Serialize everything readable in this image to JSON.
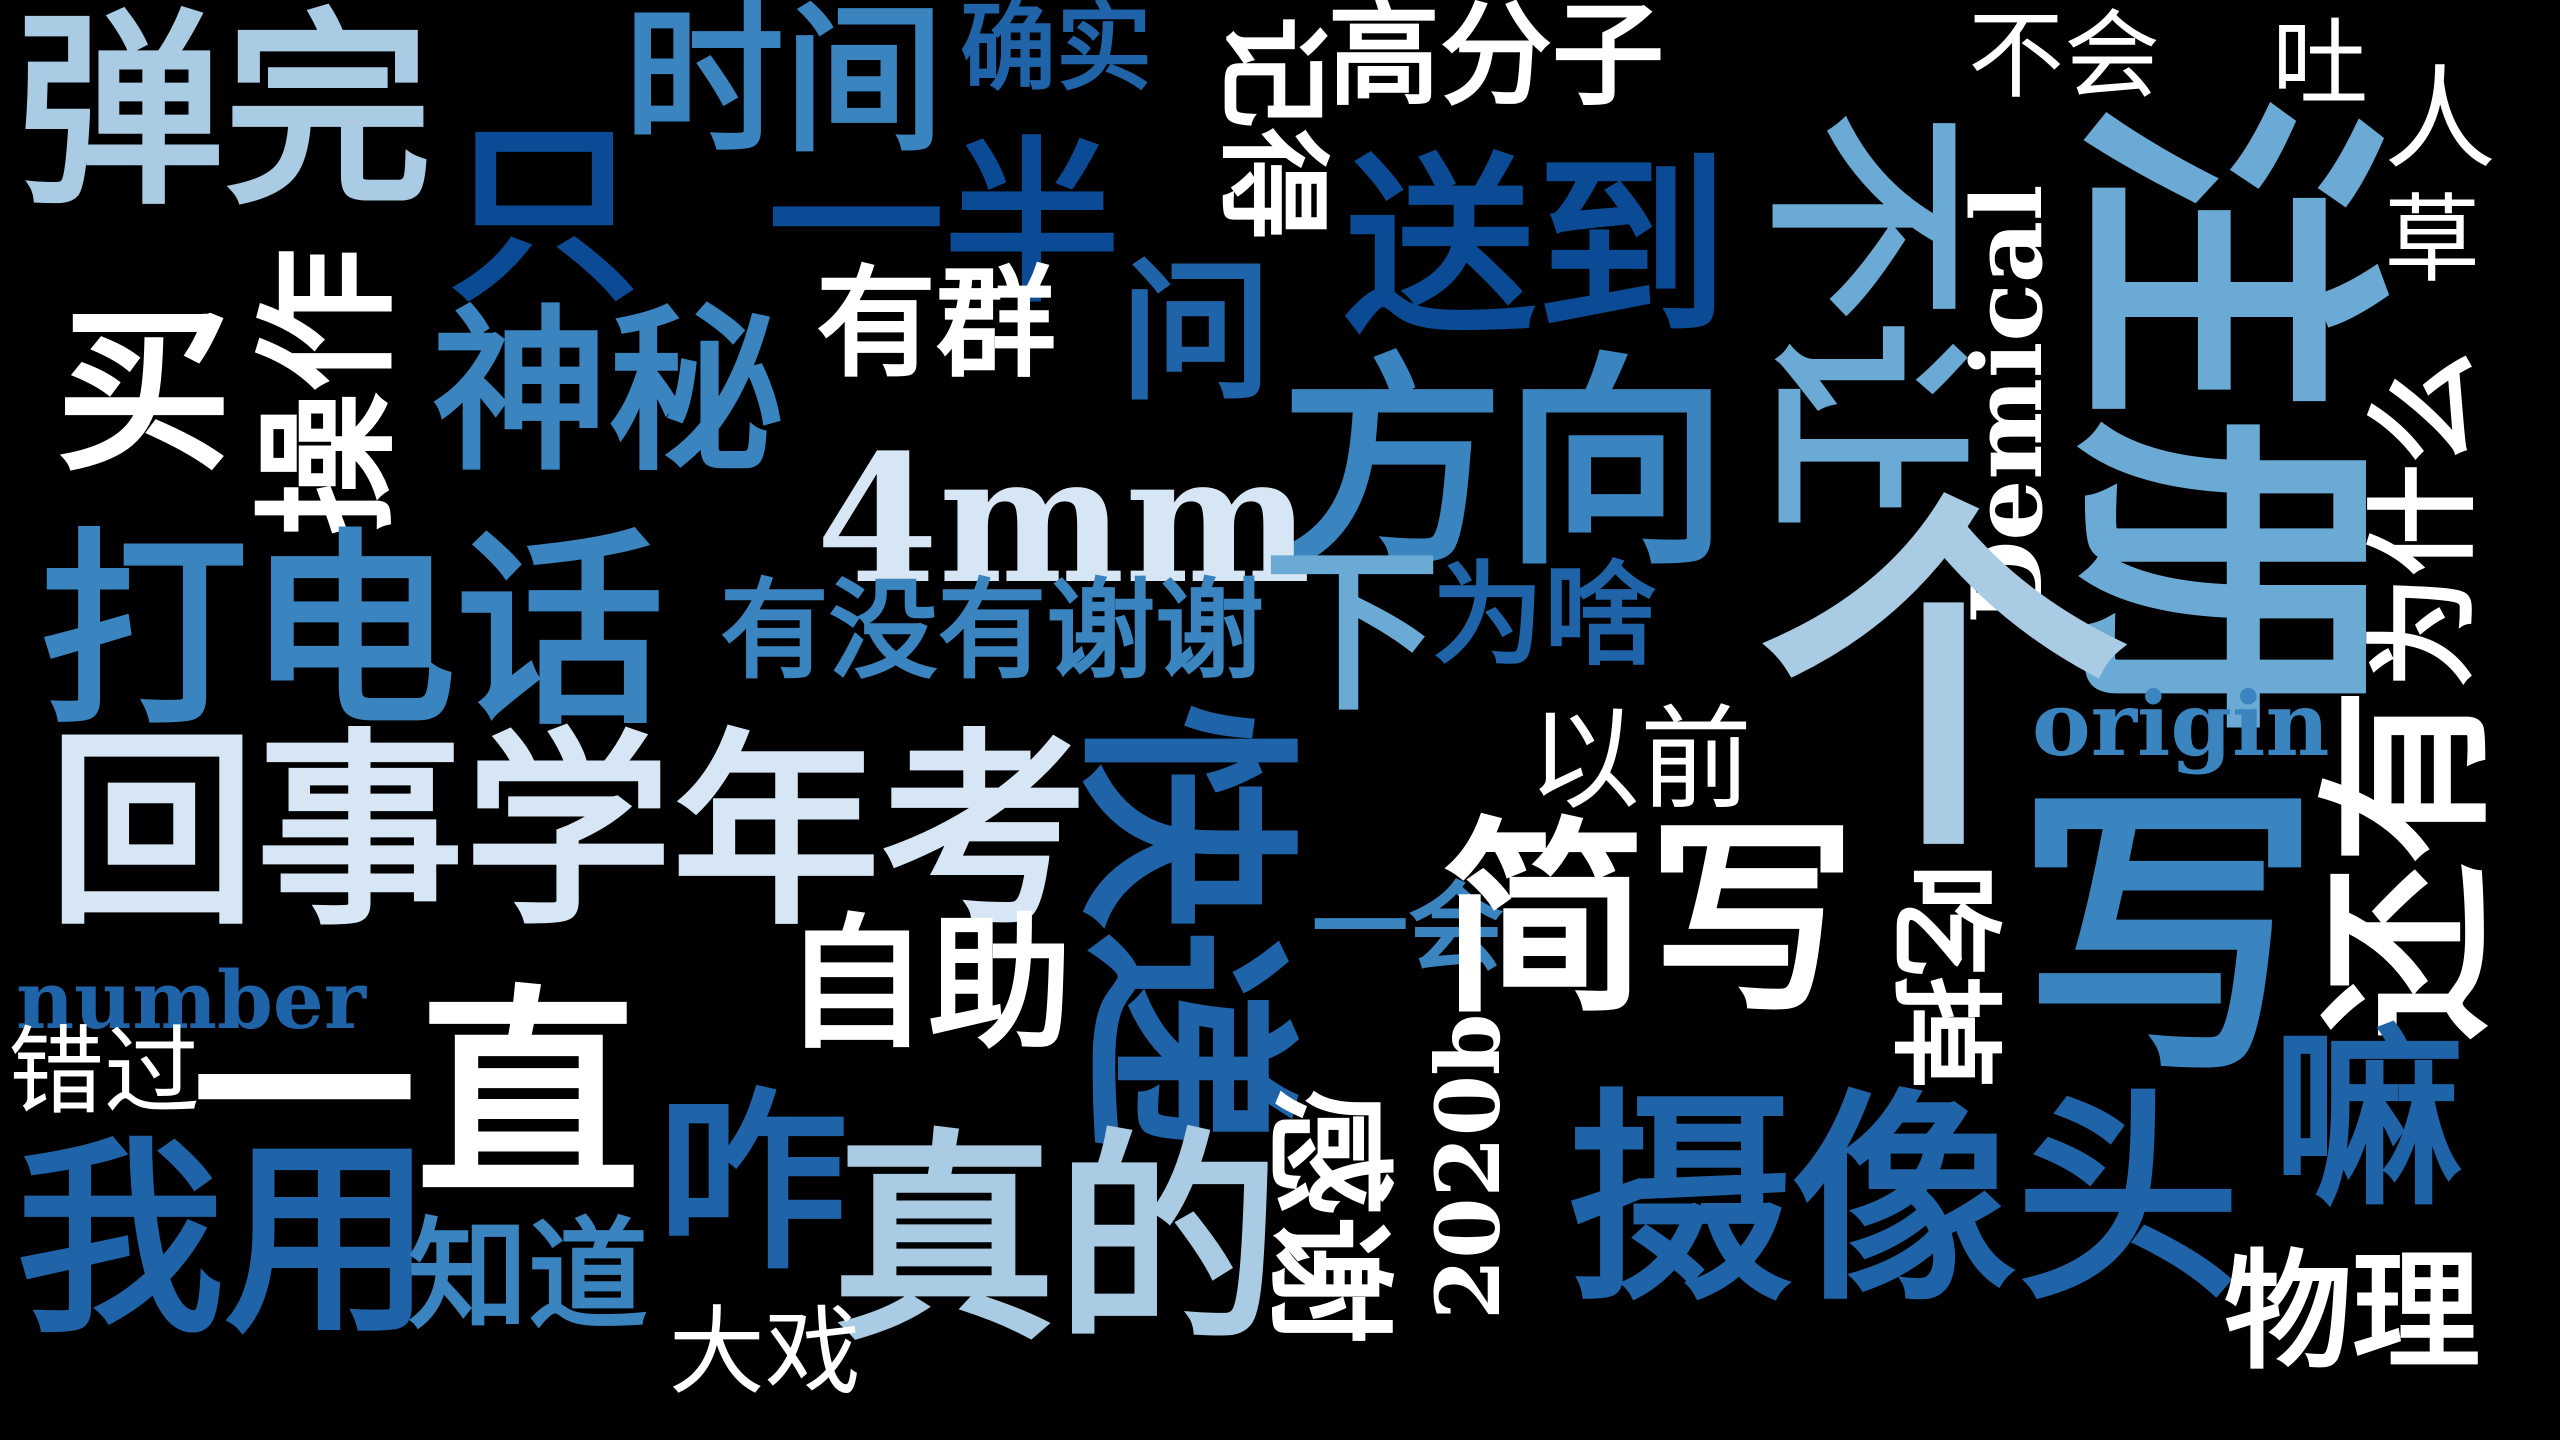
{
  "palette": {
    "background": "#000000",
    "white": "#ffffff",
    "pale": "#d6e6f4",
    "light": "#a9cbe3",
    "mid": "#6aaad4",
    "blue": "#3a84c0",
    "strong": "#1f63a8",
    "deep": "#0b4a94"
  },
  "words": {
    "w01": "弹完",
    "w02": "时间",
    "w03": "确实",
    "w04": "记得",
    "w05": "高分子",
    "w06": "不会",
    "w07": "吐",
    "w08": "人",
    "w09": "只",
    "w10": "一半",
    "w11": "送到",
    "w12": "不让",
    "w13": "注册",
    "w14": "草",
    "w15": "操作",
    "w16": "买",
    "w17": "有群",
    "w18": "问",
    "w19": "神秘",
    "w20": "方向",
    "w21": "为什么",
    "w22": "Demical",
    "w23": "4mm",
    "w24": "打电话",
    "w25": "有没有谢谢",
    "w26": "下",
    "w27": "为啥",
    "w28": "个",
    "w29": "以前",
    "w30": "origin",
    "w31": "还有",
    "w32": "回事学年考",
    "w33": "快递",
    "w34": "一会",
    "w35": "简写",
    "w36": "吃掉",
    "w37": "写",
    "w38": "自助",
    "w39": "number",
    "w40": "一直",
    "w41": "错过",
    "w42": "嘛",
    "w43": "我用",
    "w44": "咋",
    "w45": "真的",
    "w46": "感谢",
    "w47": "2020b",
    "w48": "摄像头",
    "w49": "知道",
    "w50": "大戏",
    "w51": "物理"
  }
}
